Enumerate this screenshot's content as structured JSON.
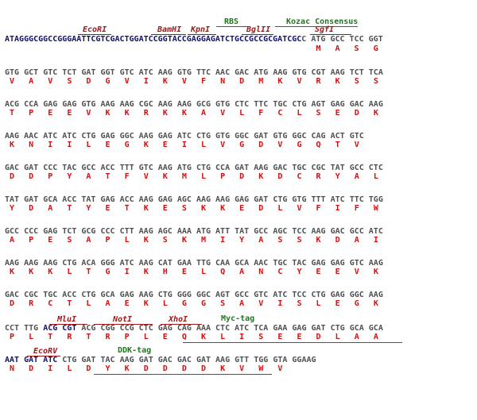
{
  "features": {
    "rbs": "RBS",
    "kozac": "Kozac Consensus",
    "ecori": "EcoRI",
    "bamhi": "BamHI",
    "kpni": "KpnI",
    "bglii": "BglII",
    "sgfi": "SgfI",
    "mlui": "MluI",
    "noti": "NotI",
    "xhoi": "XhoI",
    "myc": "Myc-tag",
    "ecorv": "EcoRV",
    "ddk": "DDK-tag"
  },
  "sequence": {
    "leader_part1": "ATAGGGCGGCCGGGAATTCGTCGACTGGATCCGGTACCGAGGAGATCTGCCGCCGCGATCGC",
    "leader_part2": "C",
    "rows": [
      {
        "codons": [
          "ATG",
          "GCC",
          "TCC",
          "GGT"
        ],
        "aa": [
          "M",
          "A",
          "S",
          "G"
        ]
      },
      {
        "codons": [
          "GTG",
          "GCT",
          "GTC",
          "TCT",
          "GAT",
          "GGT",
          "GTC",
          "ATC",
          "AAG",
          "GTG",
          "TTC",
          "AAC",
          "GAC",
          "ATG",
          "AAG",
          "GTG",
          "CGT",
          "AAG",
          "TCT",
          "TCA"
        ],
        "aa": [
          "V",
          "A",
          "V",
          "S",
          "D",
          "G",
          "V",
          "I",
          "K",
          "V",
          "F",
          "N",
          "D",
          "M",
          "K",
          "V",
          "R",
          "K",
          "S",
          "S"
        ]
      },
      {
        "codons": [
          "ACG",
          "CCA",
          "GAG",
          "GAG",
          "GTG",
          "AAG",
          "AAG",
          "CGC",
          "AAG",
          "AAG",
          "GCG",
          "GTG",
          "CTC",
          "TTC",
          "TGC",
          "CTG",
          "AGT",
          "GAG",
          "GAC",
          "AAG"
        ],
        "aa": [
          "T",
          "P",
          "E",
          "E",
          "V",
          "K",
          "K",
          "R",
          "K",
          "K",
          "A",
          "V",
          "L",
          "F",
          "C",
          "L",
          "S",
          "E",
          "D",
          "K"
        ]
      },
      {
        "codons": [
          "AAG",
          "AAC",
          "ATC",
          "ATC",
          "CTG",
          "GAG",
          "GGC",
          "AAG",
          "GAG",
          "ATC",
          "CTG",
          "GTG",
          "GGC",
          "GAT",
          "GTG",
          "GGC",
          "CAG",
          "ACT",
          "GTC"
        ],
        "aa": [
          "K",
          "N",
          "I",
          "I",
          "L",
          "E",
          "G",
          "K",
          "E",
          "I",
          "L",
          "V",
          "G",
          "D",
          "V",
          "G",
          "Q",
          "T",
          "V"
        ]
      },
      {
        "codons": [
          "GAC",
          "GAT",
          "CCC",
          "TAC",
          "GCC",
          "ACC",
          "TTT",
          "GTC",
          "AAG",
          "ATG",
          "CTG",
          "CCA",
          "GAT",
          "AAG",
          "GAC",
          "TGC",
          "CGC",
          "TAT",
          "GCC",
          "CTC"
        ],
        "aa": [
          "D",
          "D",
          "P",
          "Y",
          "A",
          "T",
          "F",
          "V",
          "K",
          "M",
          "L",
          "P",
          "D",
          "K",
          "D",
          "C",
          "R",
          "Y",
          "A",
          "L"
        ]
      },
      {
        "codons": [
          "TAT",
          "GAT",
          "GCA",
          "ACC",
          "TAT",
          "GAG",
          "ACC",
          "AAG",
          "GAG",
          "AGC",
          "AAG",
          "AAG",
          "GAG",
          "GAT",
          "CTG",
          "GTG",
          "TTT",
          "ATC",
          "TTC",
          "TGG"
        ],
        "aa": [
          "Y",
          "D",
          "A",
          "T",
          "Y",
          "E",
          "T",
          "K",
          "E",
          "S",
          "K",
          "K",
          "E",
          "D",
          "L",
          "V",
          "F",
          "I",
          "F",
          "W"
        ]
      },
      {
        "codons": [
          "GCC",
          "CCC",
          "GAG",
          "TCT",
          "GCG",
          "CCC",
          "CTT",
          "AAG",
          "AGC",
          "AAA",
          "ATG",
          "ATT",
          "TAT",
          "GCC",
          "AGC",
          "TCC",
          "AAG",
          "GAC",
          "GCC",
          "ATC"
        ],
        "aa": [
          "A",
          "P",
          "E",
          "S",
          "A",
          "P",
          "L",
          "K",
          "S",
          "K",
          "M",
          "I",
          "Y",
          "A",
          "S",
          "S",
          "K",
          "D",
          "A",
          "I"
        ]
      },
      {
        "codons": [
          "AAG",
          "AAG",
          "AAG",
          "CTG",
          "ACA",
          "GGG",
          "ATC",
          "AAG",
          "CAT",
          "GAA",
          "TTG",
          "CAA",
          "GCA",
          "AAC",
          "TGC",
          "TAC",
          "GAG",
          "GAG",
          "GTC",
          "AAG"
        ],
        "aa": [
          "K",
          "K",
          "K",
          "L",
          "T",
          "G",
          "I",
          "K",
          "H",
          "E",
          "L",
          "Q",
          "A",
          "N",
          "C",
          "Y",
          "E",
          "E",
          "V",
          "K"
        ]
      },
      {
        "codons": [
          "GAC",
          "CGC",
          "TGC",
          "ACC",
          "CTG",
          "GCA",
          "GAG",
          "AAG",
          "CTG",
          "GGG",
          "GGC",
          "AGT",
          "GCC",
          "GTC",
          "ATC",
          "TCC",
          "CTG",
          "GAG",
          "GGC",
          "AAG"
        ],
        "aa": [
          "D",
          "R",
          "C",
          "T",
          "L",
          "A",
          "E",
          "K",
          "L",
          "G",
          "G",
          "S",
          "A",
          "V",
          "I",
          "S",
          "L",
          "E",
          "G",
          "K"
        ]
      },
      {
        "codons": [
          "CCT",
          "TTG",
          "ACG",
          "CGT",
          "ACG",
          "CGG",
          "CCG",
          "CTC",
          "GAG",
          "CAG",
          "AAA",
          "CTC",
          "ATC",
          "TCA",
          "GAA",
          "GAG",
          "GAT",
          "CTG",
          "GCA",
          "GCA"
        ],
        "aa": [
          "P",
          "L",
          "T",
          "R",
          "T",
          "R",
          "P",
          "L",
          "E",
          "Q",
          "K",
          "L",
          "I",
          "S",
          "E",
          "E",
          "D",
          "L",
          "A",
          "A"
        ]
      },
      {
        "codons": [
          "AAT",
          "GAT",
          "ATC",
          "CTG",
          "GAT",
          "TAC",
          "AAG",
          "GAT",
          "GAC",
          "GAC",
          "GAT",
          "AAG",
          "GTT",
          "TGG",
          "GTA",
          "GGAAG"
        ],
        "aa": [
          "N",
          "D",
          "I",
          "L",
          "D",
          "Y",
          "K",
          "D",
          "D",
          "D",
          "D",
          "K",
          "V",
          "W",
          "V",
          ""
        ]
      }
    ]
  }
}
